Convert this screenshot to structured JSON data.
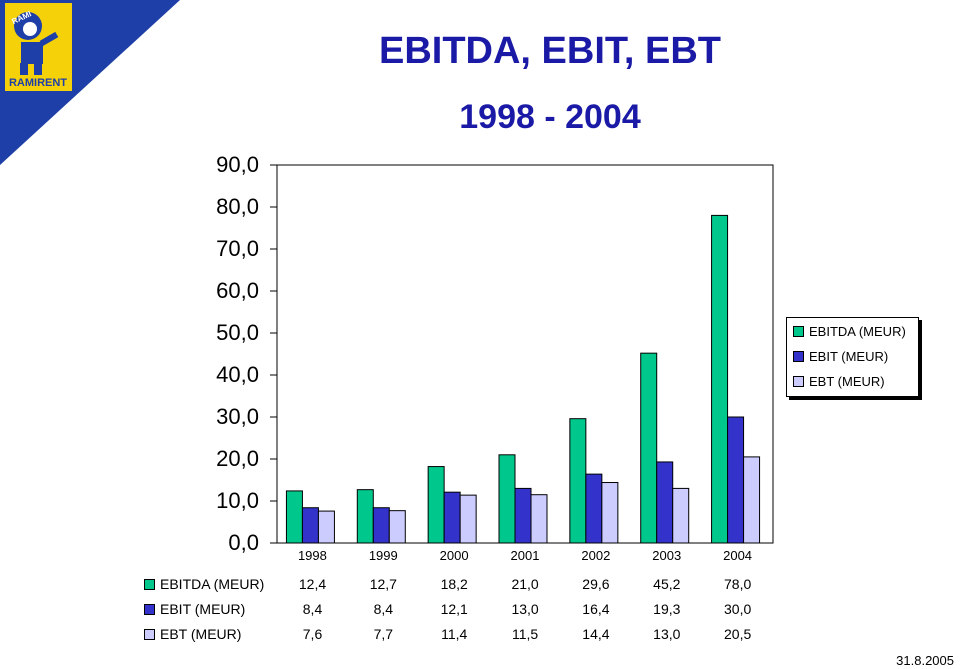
{
  "logo": {
    "text": "RAMIRENT",
    "badge": "RAMI"
  },
  "chart_data": {
    "type": "bar",
    "title": "EBITDA, EBIT, EBT",
    "subtitle": "1998 - 2004",
    "categories": [
      "1998",
      "1999",
      "2000",
      "2001",
      "2002",
      "2003",
      "2004"
    ],
    "series": [
      {
        "name": "EBITDA (MEUR)",
        "color": "#00c88c",
        "values": [
          12.4,
          12.7,
          18.2,
          21.0,
          29.6,
          45.2,
          78.0
        ],
        "labels": [
          "12,4",
          "12,7",
          "18,2",
          "21,0",
          "29,6",
          "45,2",
          "78,0"
        ]
      },
      {
        "name": "EBIT (MEUR)",
        "color": "#3333cc",
        "values": [
          8.4,
          8.4,
          12.1,
          13.0,
          16.4,
          19.3,
          30.0
        ],
        "labels": [
          "8,4",
          "8,4",
          "12,1",
          "13,0",
          "16,4",
          "19,3",
          "30,0"
        ]
      },
      {
        "name": "EBT (MEUR)",
        "color": "#ccccff",
        "values": [
          7.6,
          7.7,
          11.4,
          11.5,
          14.4,
          13.0,
          20.5
        ],
        "labels": [
          "7,6",
          "7,7",
          "11,4",
          "11,5",
          "14,4",
          "13,0",
          "20,5"
        ]
      }
    ],
    "ylim": [
      0,
      90
    ],
    "yticks": [
      "0,0",
      "10,0",
      "20,0",
      "30,0",
      "40,0",
      "50,0",
      "60,0",
      "70,0",
      "80,0",
      "90,0"
    ],
    "legend": "right",
    "grid": false
  },
  "footer": {
    "date": "31.8.2005"
  }
}
